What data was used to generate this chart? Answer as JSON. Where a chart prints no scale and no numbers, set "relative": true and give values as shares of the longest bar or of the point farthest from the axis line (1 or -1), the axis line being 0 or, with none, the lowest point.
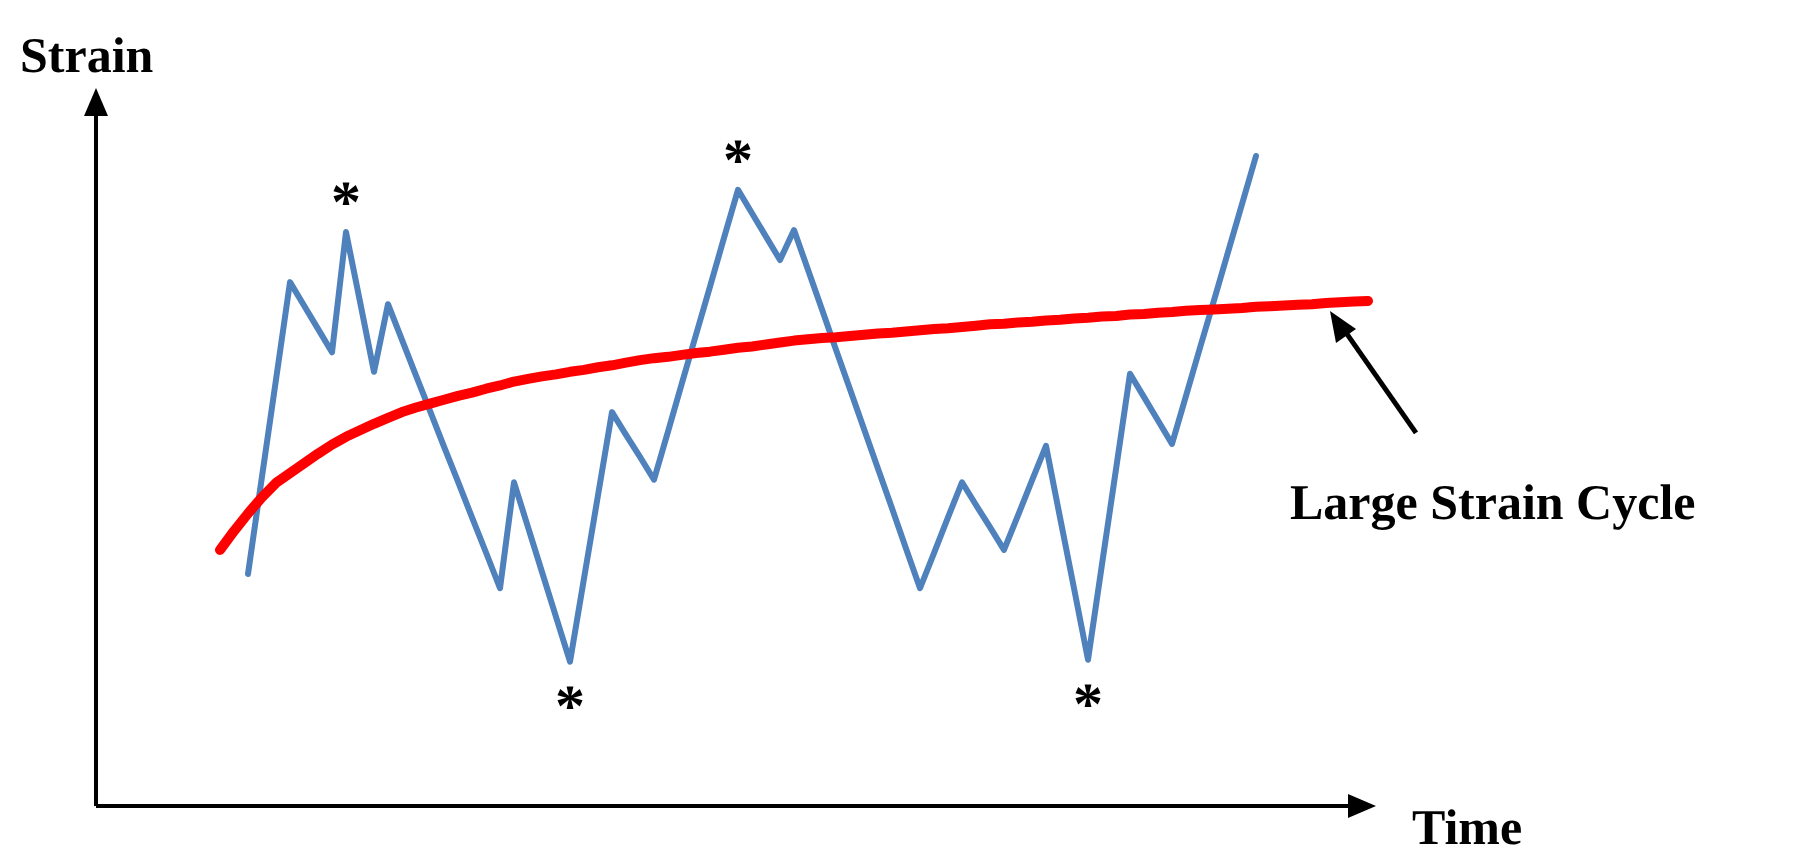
{
  "chart_data": {
    "type": "line",
    "xlabel": "Time",
    "ylabel": "Strain",
    "relative": true,
    "categories": [
      null,
      null,
      null,
      null,
      null,
      null,
      null,
      null,
      null,
      null,
      null,
      null,
      null,
      null,
      null,
      null,
      null,
      null,
      null,
      null,
      null,
      null,
      null,
      null,
      null,
      null,
      null,
      null,
      null,
      null,
      null,
      null,
      null,
      null,
      null,
      null,
      null,
      null,
      null,
      null,
      null,
      null,
      null,
      null,
      null,
      null,
      null,
      null,
      null,
      null,
      null,
      null,
      null,
      null,
      null,
      null,
      null,
      null,
      null,
      null,
      null,
      null,
      null,
      null,
      null,
      null,
      null,
      null,
      null,
      null,
      null,
      null,
      null,
      null,
      null,
      null,
      null,
      null,
      null,
      null,
      null,
      null,
      null
    ],
    "series": [
      {
        "color": "#4f81bd",
        "values": [
          null,
          null,
          0.357,
          0.507,
          0.656,
          0.806,
          0.77,
          0.734,
          0.698,
          0.883,
          0.776,
          0.668,
          0.772,
          0.717,
          0.662,
          0.608,
          0.553,
          0.499,
          0.444,
          0.39,
          0.335,
          0.498,
          0.429,
          0.36,
          0.291,
          0.222,
          0.35,
          0.478,
          0.606,
          0.571,
          0.537,
          0.502,
          0.576,
          0.651,
          0.725,
          0.799,
          0.874,
          0.948,
          0.912,
          0.876,
          0.84,
          0.886,
          0.825,
          0.764,
          0.702,
          0.641,
          0.58,
          0.519,
          0.458,
          0.396,
          0.335,
          0.389,
          0.444,
          0.498,
          0.463,
          0.429,
          0.394,
          0.447,
          0.501,
          0.554,
          0.444,
          0.335,
          0.225,
          0.372,
          0.518,
          0.665,
          0.629,
          0.593,
          0.557,
          0.631,
          0.705,
          0.778,
          0.852,
          0.926,
          1,
          null,
          null,
          null,
          null,
          null,
          null,
          null,
          null
        ]
      },
      {
        "color": "#ff0000",
        "values": [
          0.394,
          0.423,
          0.45,
          0.475,
          0.497,
          0.512,
          0.527,
          0.542,
          0.556,
          0.568,
          0.578,
          0.588,
          0.597,
          0.606,
          0.613,
          0.619,
          0.625,
          0.631,
          0.636,
          0.642,
          0.647,
          0.653,
          0.657,
          0.661,
          0.664,
          0.668,
          0.671,
          0.675,
          0.678,
          0.682,
          0.686,
          0.689,
          0.691,
          0.694,
          0.697,
          0.699,
          0.702,
          0.705,
          0.707,
          0.71,
          0.713,
          0.716,
          0.718,
          0.72,
          0.721,
          0.723,
          0.725,
          0.727,
          0.728,
          0.73,
          0.732,
          0.734,
          0.735,
          0.737,
          0.739,
          0.741,
          0.742,
          0.744,
          0.745,
          0.747,
          0.748,
          0.75,
          0.751,
          0.753,
          0.754,
          0.756,
          0.757,
          0.759,
          0.76,
          0.762,
          0.763,
          0.764,
          0.765,
          0.766,
          0.768,
          0.769,
          0.77,
          0.771,
          0.772,
          0.774,
          0.775,
          0.776,
          0.777
        ]
      }
    ],
    "annotations": [
      {
        "text": "*",
        "y": 0.883
      },
      {
        "text": "*",
        "y": 0.222
      },
      {
        "text": "*",
        "y": 0.948
      },
      {
        "text": "*",
        "y": 0.225
      },
      "Large Strain Cycle"
    ]
  }
}
